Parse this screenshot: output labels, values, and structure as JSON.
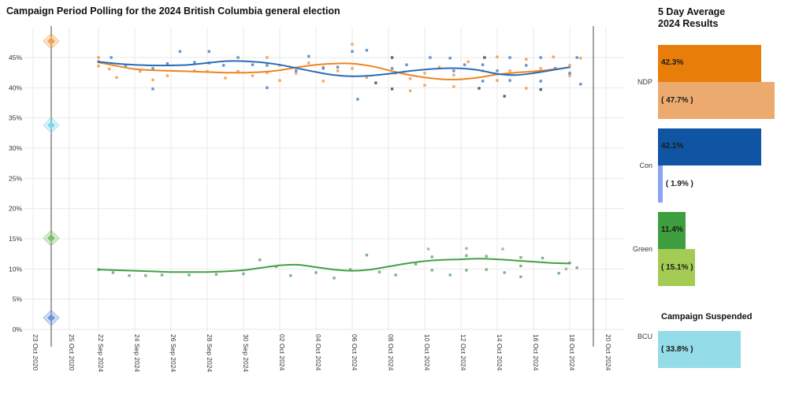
{
  "main_chart": {
    "title": "Campaign Period Polling for the 2024 British Columbia general election"
  },
  "chart_data": {
    "type": "scatter",
    "title": "Campaign Period Polling for the 2024 British Columbia general election",
    "x_is_days_since": "22 Sep 2024",
    "x_ticks": [
      "23 Oct 2020",
      "25 Oct 2020",
      "22 Sep 2024",
      "24 Sep 2024",
      "26 Sep 2024",
      "28 Sep 2024",
      "30 Sep 2024",
      "02 Oct 2024",
      "04 Oct 2024",
      "06 Oct 2024",
      "08 Oct 2024",
      "10 Oct 2024",
      "12 Oct 2024",
      "14 Oct 2024",
      "16 Oct 2024",
      "18 Oct 2024",
      "20 Oct 2024"
    ],
    "y_ticks": [
      "0%",
      "5%",
      "10%",
      "15%",
      "20%",
      "25%",
      "30%",
      "35%",
      "40%",
      "45%"
    ],
    "y_range": [
      0,
      48
    ],
    "grid": true,
    "legend_position": "none",
    "election_2020_markers": {
      "line_color": "#7d7d7d",
      "diamonds": [
        {
          "party": "NDP",
          "value": 47.7,
          "color": "#f0a050"
        },
        {
          "party": "BCU",
          "value": 33.8,
          "color": "#7fd6e8"
        },
        {
          "party": "Green",
          "value": 15.1,
          "color": "#7cbf6c"
        },
        {
          "party": "Con",
          "value": 1.9,
          "color": "#6b93d6"
        }
      ]
    },
    "series": [
      {
        "name": "NDP",
        "line_color": "#ee8420",
        "point_color": "#f0923c",
        "trend": [
          [
            0,
            44.2
          ],
          [
            1,
            43.6
          ],
          [
            2,
            43.1
          ],
          [
            3,
            42.9
          ],
          [
            4,
            42.8
          ],
          [
            5,
            42.7
          ],
          [
            6,
            42.6
          ],
          [
            7,
            42.5
          ],
          [
            8,
            42.5
          ],
          [
            9,
            42.6
          ],
          [
            10,
            42.9
          ],
          [
            11,
            43.4
          ],
          [
            12,
            43.8
          ],
          [
            13,
            44.0
          ],
          [
            14,
            44.0
          ],
          [
            15,
            43.6
          ],
          [
            16,
            42.9
          ],
          [
            17,
            42.2
          ],
          [
            18,
            41.7
          ],
          [
            19,
            41.4
          ],
          [
            20,
            41.4
          ],
          [
            21,
            41.7
          ],
          [
            22,
            42.2
          ],
          [
            23,
            42.5
          ],
          [
            24,
            42.7
          ],
          [
            25,
            43.0
          ],
          [
            26,
            43.4
          ]
        ],
        "points": [
          [
            0,
            45.0
          ],
          [
            0,
            43.6
          ],
          [
            0.6,
            43.1
          ],
          [
            1,
            41.7
          ],
          [
            2.3,
            42.7
          ],
          [
            3,
            41.3
          ],
          [
            3.8,
            42.0
          ],
          [
            5.3,
            42.8
          ],
          [
            6,
            42.7
          ],
          [
            7,
            41.6
          ],
          [
            7.7,
            42.7
          ],
          [
            8.5,
            42.0
          ],
          [
            9.3,
            45.0
          ],
          [
            9.3,
            42.5
          ],
          [
            10,
            43.7
          ],
          [
            10,
            41.2
          ],
          [
            10.9,
            42.4
          ],
          [
            11.6,
            44.1
          ],
          [
            12.4,
            43.4
          ],
          [
            12.4,
            41.1
          ],
          [
            13.2,
            42.8
          ],
          [
            14,
            47.2
          ],
          [
            14,
            43.2
          ],
          [
            14.8,
            41.7
          ],
          [
            16.4,
            42.4
          ],
          [
            17.2,
            41.5
          ],
          [
            17.2,
            39.5
          ],
          [
            18,
            42.4
          ],
          [
            18,
            40.4
          ],
          [
            18.8,
            43.4
          ],
          [
            19.6,
            42.1
          ],
          [
            19.6,
            40.2
          ],
          [
            20.4,
            44.3
          ],
          [
            21.2,
            42.8
          ],
          [
            22,
            45.1
          ],
          [
            22,
            41.2
          ],
          [
            22.7,
            42.8
          ],
          [
            23.6,
            44.7
          ],
          [
            23.6,
            39.9
          ],
          [
            24.4,
            43.2
          ],
          [
            25.1,
            45.1
          ],
          [
            26,
            43.7
          ],
          [
            26,
            42.0
          ],
          [
            26.6,
            44.9
          ]
        ]
      },
      {
        "name": "Con",
        "line_color": "#2a6cb8",
        "point_color": "#4079c5",
        "trend": [
          [
            0,
            44.3
          ],
          [
            1,
            44.0
          ],
          [
            2,
            43.8
          ],
          [
            3,
            43.7
          ],
          [
            4,
            43.7
          ],
          [
            5,
            43.8
          ],
          [
            6,
            44.1
          ],
          [
            7,
            44.4
          ],
          [
            8,
            44.4
          ],
          [
            9,
            44.2
          ],
          [
            10,
            43.8
          ],
          [
            11,
            43.2
          ],
          [
            12,
            42.6
          ],
          [
            13,
            42.1
          ],
          [
            14,
            41.9
          ],
          [
            15,
            42.0
          ],
          [
            16,
            42.3
          ],
          [
            17,
            42.7
          ],
          [
            18,
            43.0
          ],
          [
            19,
            43.2
          ],
          [
            20,
            43.2
          ],
          [
            21,
            42.9
          ],
          [
            22,
            42.3
          ],
          [
            23,
            42.1
          ],
          [
            24,
            42.4
          ],
          [
            25,
            42.9
          ],
          [
            26,
            43.4
          ]
        ],
        "points": [
          [
            0,
            44.3
          ],
          [
            0.7,
            45.0
          ],
          [
            1.5,
            43.7
          ],
          [
            3,
            43.2
          ],
          [
            3,
            39.8
          ],
          [
            3.8,
            44.0
          ],
          [
            4.5,
            46.0
          ],
          [
            5.3,
            44.2
          ],
          [
            6.1,
            46.0
          ],
          [
            6.1,
            44.1
          ],
          [
            6.9,
            43.7
          ],
          [
            7.7,
            45.0
          ],
          [
            8.5,
            43.8
          ],
          [
            9.3,
            43.7
          ],
          [
            9.3,
            40.0
          ],
          [
            10.9,
            42.8
          ],
          [
            11.6,
            45.2
          ],
          [
            12.4,
            43.2
          ],
          [
            13.2,
            43.4
          ],
          [
            14,
            46.0
          ],
          [
            14.3,
            38.1
          ],
          [
            14.8,
            46.2
          ],
          [
            16.2,
            43.2
          ],
          [
            17,
            43.8
          ],
          [
            18.3,
            45.0
          ],
          [
            19.4,
            44.9
          ],
          [
            19.6,
            42.8
          ],
          [
            20.2,
            43.8
          ],
          [
            21.2,
            43.8
          ],
          [
            21.2,
            41.1
          ],
          [
            22,
            42.8
          ],
          [
            22.7,
            45.0
          ],
          [
            22.7,
            41.2
          ],
          [
            23.6,
            43.7
          ],
          [
            24.4,
            45.0
          ],
          [
            24.4,
            41.1
          ],
          [
            25.2,
            43.2
          ],
          [
            26,
            42.4
          ],
          [
            26.4,
            45.0
          ],
          [
            26.6,
            40.6
          ]
        ]
      },
      {
        "name": "Green",
        "line_color": "#43a047",
        "point_color": "#5ca85c",
        "trend": [
          [
            0,
            9.9
          ],
          [
            1,
            9.8
          ],
          [
            2,
            9.7
          ],
          [
            3,
            9.6
          ],
          [
            4,
            9.5
          ],
          [
            5,
            9.5
          ],
          [
            6,
            9.5
          ],
          [
            7,
            9.6
          ],
          [
            8,
            9.8
          ],
          [
            9,
            10.2
          ],
          [
            10,
            10.6
          ],
          [
            11,
            10.7
          ],
          [
            12,
            10.3
          ],
          [
            13,
            9.9
          ],
          [
            14,
            9.7
          ],
          [
            15,
            9.9
          ],
          [
            16,
            10.4
          ],
          [
            17,
            10.9
          ],
          [
            18,
            11.3
          ],
          [
            19,
            11.5
          ],
          [
            20,
            11.6
          ],
          [
            21,
            11.7
          ],
          [
            22,
            11.6
          ],
          [
            23,
            11.4
          ],
          [
            24,
            11.2
          ],
          [
            25,
            11.0
          ],
          [
            26,
            10.9
          ]
        ],
        "points": [
          [
            0,
            9.9
          ],
          [
            0.8,
            9.4
          ],
          [
            1.7,
            8.9
          ],
          [
            2.6,
            8.9
          ],
          [
            3.5,
            9.0
          ],
          [
            5,
            9.0
          ],
          [
            6.5,
            9.1
          ],
          [
            8,
            9.2
          ],
          [
            8.9,
            11.5
          ],
          [
            9.8,
            10.4
          ],
          [
            10.6,
            8.9
          ],
          [
            12,
            9.4
          ],
          [
            13,
            8.5
          ],
          [
            13.9,
            9.9
          ],
          [
            14.8,
            12.3
          ],
          [
            15.5,
            9.5
          ],
          [
            16.4,
            9.0
          ],
          [
            17.5,
            10.8
          ],
          [
            18.4,
            12.0
          ],
          [
            18.4,
            9.8
          ],
          [
            19.4,
            9.0
          ],
          [
            20.3,
            12.2
          ],
          [
            20.3,
            9.8
          ],
          [
            21.4,
            12.1
          ],
          [
            21.4,
            9.9
          ],
          [
            22.4,
            9.4
          ],
          [
            23.3,
            11.9
          ],
          [
            23.3,
            10.5
          ],
          [
            23.3,
            8.7
          ],
          [
            24.5,
            11.8
          ],
          [
            25.4,
            9.3
          ],
          [
            26,
            11.0
          ],
          [
            26.4,
            10.2
          ]
        ]
      },
      {
        "name": "unattributed-dark",
        "point_color": "#2f4050",
        "points": [
          [
            15.3,
            40.8
          ],
          [
            16.2,
            45.0
          ],
          [
            16.2,
            39.8
          ],
          [
            21.3,
            45.0
          ],
          [
            21.0,
            39.9
          ],
          [
            22.4,
            38.6
          ],
          [
            24.4,
            39.7
          ]
        ]
      },
      {
        "name": "unattributed-gray",
        "point_color": "#9aa59a",
        "points": [
          [
            18.2,
            13.3
          ],
          [
            20.3,
            13.4
          ],
          [
            22.3,
            13.3
          ],
          [
            25.8,
            10.0
          ]
        ]
      }
    ]
  },
  "side_panel": {
    "title_line1": "5 Day Average",
    "title_line2": "2024 Results",
    "rows": [
      {
        "party": "NDP",
        "avg": 42.3,
        "avg_label": "42.3%",
        "result": 47.7,
        "result_label": "( 47.7% )",
        "dark_color": "#e87d0a",
        "light_color": "#edaa6e"
      },
      {
        "party": "Con",
        "avg": 42.1,
        "avg_label": "42.1%",
        "result": 1.9,
        "result_label": "( 1.9% )",
        "dark_color": "#1055a4",
        "light_color": "#8ba3f0"
      },
      {
        "party": "Green",
        "avg": 11.4,
        "avg_label": "11.4%",
        "result": 15.1,
        "result_label": "( 15.1% )",
        "dark_color": "#3f9e3f",
        "light_color": "#a4cc55"
      },
      {
        "party": "BCU",
        "suspended_label": "Campaign Suspended",
        "result": 33.8,
        "result_label": "( 33.8% )",
        "light_color": "#93dce8"
      }
    ]
  }
}
